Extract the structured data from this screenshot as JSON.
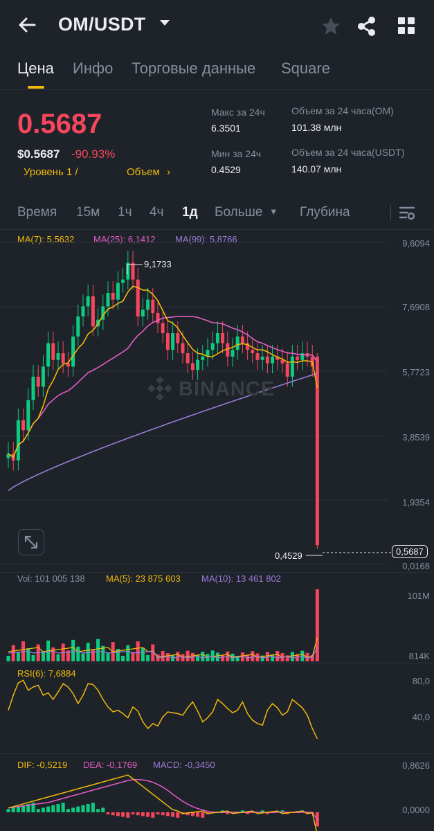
{
  "header": {
    "pair": "OM/USDT",
    "back_icon": "arrow-left-icon",
    "favorite_icon": "star-icon",
    "share_icon": "share-icon",
    "menu_icon": "grid-icon"
  },
  "tabs": [
    {
      "label": "Цена",
      "active": true
    },
    {
      "label": "Инфо",
      "active": false
    },
    {
      "label": "Торговые данные",
      "active": false
    },
    {
      "label": "Square",
      "active": false
    }
  ],
  "price": {
    "last": "0.5687",
    "usd": "$0.5687",
    "change": "-90.93%",
    "level_link": "Уровень 1 /",
    "volume_link": "Объем",
    "color_down": "#f6465d",
    "color_up": "#0ecb81",
    "accent": "#f0b90b"
  },
  "stats": {
    "high_label": "Макс за 24ч",
    "high_value": "6.3501",
    "low_label": "Мин за 24ч",
    "low_value": "0.4529",
    "vol_om_label": "Объем за 24 часа(OM)",
    "vol_om_value": "101.38 млн",
    "vol_usdt_label": "Объем за 24 часа(USDT)",
    "vol_usdt_value": "140.07 млн"
  },
  "intervals": [
    {
      "label": "Время",
      "active": false
    },
    {
      "label": "15м",
      "active": false
    },
    {
      "label": "1ч",
      "active": false
    },
    {
      "label": "4ч",
      "active": false
    },
    {
      "label": "1д",
      "active": true
    },
    {
      "label": "Больше",
      "active": false
    },
    {
      "label": "Глубина",
      "active": false
    }
  ],
  "ma_legend": {
    "ma7": "MA(7): 5,5632",
    "ma25": "MA(25): 6,1412",
    "ma99": "MA(99): 5,8766",
    "ma7_color": "#f0b90b",
    "ma25_color": "#e55cc7",
    "ma99_color": "#9b7bd8"
  },
  "price_axis": [
    "9,6094",
    "7,6908",
    "5,7723",
    "3,8539",
    "1,9354",
    "0,0168"
  ],
  "chart_annotations": {
    "high_marker": "9,1733",
    "low_marker": "0,4529",
    "current_price": "0,5687",
    "watermark": "BINANCE"
  },
  "volume": {
    "legend_vol": "Vol: 101 005 138",
    "legend_ma5": "MA(5): 23 875 603",
    "legend_ma10": "MA(10): 13 461 802",
    "axis_top": "101M",
    "axis_bottom": "814K"
  },
  "rsi": {
    "legend": "RSI(6): 7,6884",
    "axis_top": "80,0",
    "axis_mid": "40,0"
  },
  "macd": {
    "dif": "DIF: -0,5219",
    "dea": "DEA: -0,1769",
    "macd": "MACD: -0,3450",
    "axis_top": "0,8626",
    "axis_zero": "0,0000"
  },
  "chart_data": {
    "type": "candlestick",
    "timeframe": "1д",
    "y_range": [
      0.0168,
      9.6094
    ],
    "close_series_approx": [
      3.3,
      3.1,
      4.3,
      4.0,
      4.9,
      5.6,
      5.3,
      5.9,
      6.6,
      6.1,
      6.3,
      6.0,
      5.9,
      6.8,
      7.4,
      7.7,
      8.0,
      7.1,
      7.3,
      7.7,
      8.1,
      7.9,
      8.4,
      8.5,
      9.0,
      8.5,
      7.4,
      7.6,
      7.9,
      7.5,
      7.2,
      6.9,
      6.4,
      6.9,
      6.6,
      6.3,
      6.0,
      5.8,
      6.1,
      6.2,
      6.4,
      6.6,
      6.9,
      6.6,
      6.2,
      6.4,
      6.8,
      6.6,
      6.4,
      6.3,
      6.1,
      6.2,
      6.0,
      6.2,
      6.1,
      6.0,
      5.6,
      6.2,
      6.1,
      6.3,
      6.2,
      5.9,
      0.5687
    ]
  }
}
